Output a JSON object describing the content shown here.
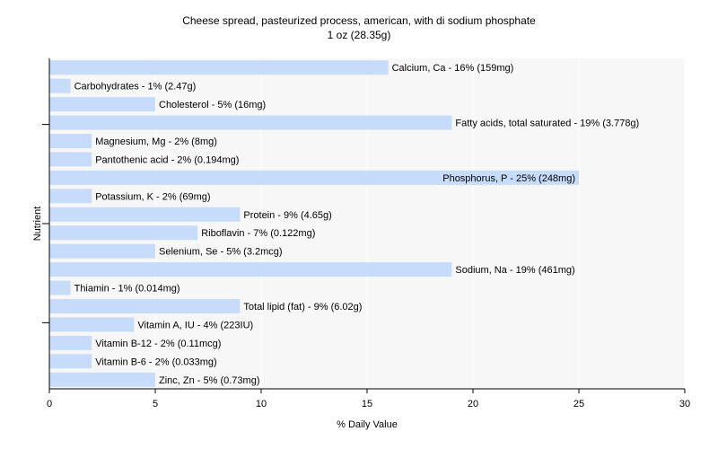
{
  "chart_data": {
    "type": "bar",
    "orientation": "horizontal",
    "title": "Cheese spread, pasteurized process, american, with di sodium phosphate",
    "subtitle": "1 oz (28.35g)",
    "xlabel": "% Daily Value",
    "ylabel": "Nutrient",
    "xlim": [
      0,
      30
    ],
    "xticks": [
      0,
      5,
      10,
      15,
      20,
      25,
      30
    ],
    "grid": true,
    "colors": {
      "bar": "#c6dcfa",
      "plot_bg": "#f7f7f7",
      "grid": "#ffffff",
      "axis": "#000000"
    },
    "categories": [
      "Calcium, Ca",
      "Carbohydrates",
      "Cholesterol",
      "Fatty acids, total saturated",
      "Magnesium, Mg",
      "Pantothenic acid",
      "Phosphorus, P",
      "Potassium, K",
      "Protein",
      "Riboflavin",
      "Selenium, Se",
      "Sodium, Na",
      "Thiamin",
      "Total lipid (fat)",
      "Vitamin A, IU",
      "Vitamin B-12",
      "Vitamin B-6",
      "Zinc, Zn"
    ],
    "values": [
      16,
      1,
      5,
      19,
      2,
      2,
      25,
      2,
      9,
      7,
      5,
      19,
      1,
      9,
      4,
      2,
      2,
      5
    ],
    "bar_labels": [
      "Calcium, Ca - 16% (159mg)",
      "Carbohydrates - 1% (2.47g)",
      "Cholesterol - 5% (16mg)",
      "Fatty acids, total saturated - 19% (3.778g)",
      "Magnesium, Mg - 2% (8mg)",
      "Pantothenic acid - 2% (0.194mg)",
      "Phosphorus, P - 25% (248mg)",
      "Potassium, K - 2% (69mg)",
      "Protein - 9% (4.65g)",
      "Riboflavin - 7% (0.122mg)",
      "Selenium, Se - 5% (3.2mcg)",
      "Sodium, Na - 19% (461mg)",
      "Thiamin - 1% (0.014mg)",
      "Total lipid (fat) - 9% (6.02g)",
      "Vitamin A, IU - 4% (223IU)",
      "Vitamin B-12 - 2% (0.11mcg)",
      "Vitamin B-6 - 2% (0.033mg)",
      "Zinc, Zn - 5% (0.73mg)"
    ]
  }
}
